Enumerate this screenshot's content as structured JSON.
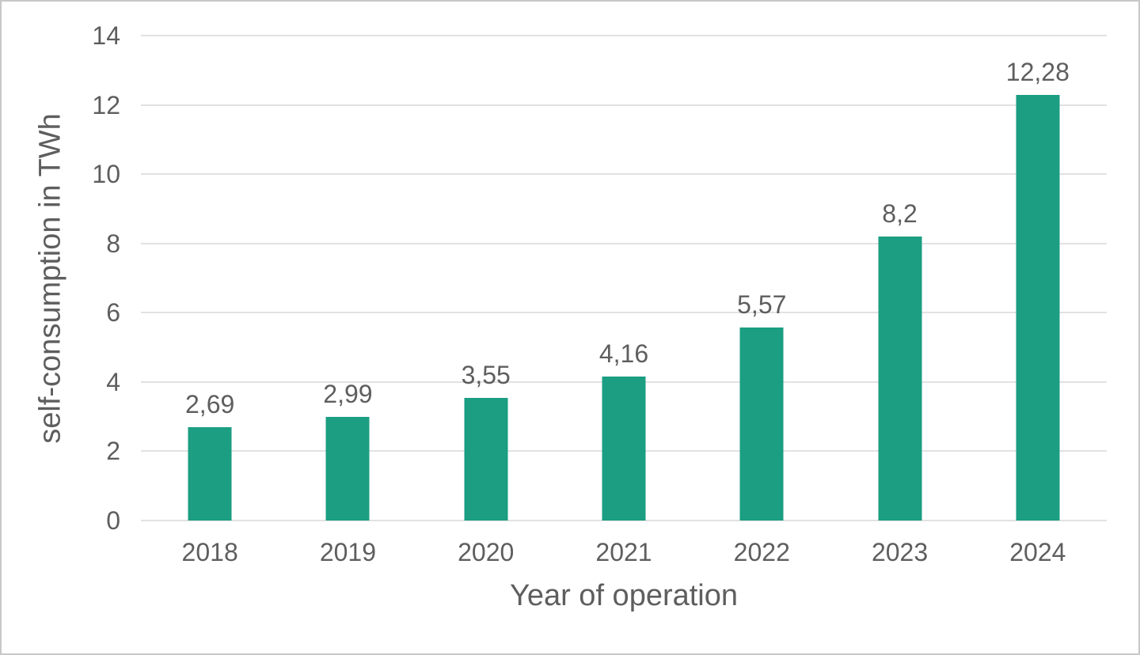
{
  "chart_data": {
    "type": "bar",
    "title": "",
    "xlabel": "Year of operation",
    "ylabel": "self-consumption in TWh",
    "categories": [
      "2018",
      "2019",
      "2020",
      "2021",
      "2022",
      "2023",
      "2024"
    ],
    "values": [
      2.69,
      2.99,
      3.55,
      4.16,
      5.57,
      8.2,
      12.28
    ],
    "value_labels": [
      "2,69",
      "2,99",
      "3,55",
      "4,16",
      "5,57",
      "8,2",
      "12,28"
    ],
    "ylim": [
      0,
      14
    ],
    "yticks": [
      0,
      2,
      4,
      6,
      8,
      10,
      12,
      14
    ],
    "grid": "horizontal",
    "legend": "none",
    "colors": {
      "bar": "#1b9e82",
      "text": "#5e5e5e",
      "gridline": "#e2e2e2",
      "background": "#ffffff",
      "frame_border": "#c8c8c8"
    }
  }
}
